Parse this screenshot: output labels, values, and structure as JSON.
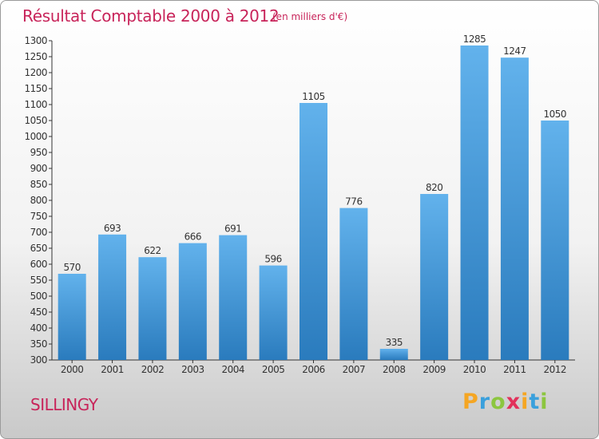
{
  "header": {
    "title": "Résultat Comptable 2000 à 2012",
    "unit_note": "(en milliers d'€)"
  },
  "footer": {
    "commune": "SILLINGY",
    "logo": "Proxiti"
  },
  "colors": {
    "accent": "#c8245a",
    "bar_top": "#62b2ec",
    "bar_bottom": "#2a7bbd"
  },
  "chart_data": {
    "type": "bar",
    "title": "Résultat Comptable 2000 à 2012",
    "subtitle": "(en milliers d'€)",
    "xlabel": "",
    "ylabel": "",
    "categories": [
      "2000",
      "2001",
      "2002",
      "2003",
      "2004",
      "2005",
      "2006",
      "2007",
      "2008",
      "2009",
      "2010",
      "2011",
      "2012"
    ],
    "values": [
      570,
      693,
      622,
      666,
      691,
      596,
      1105,
      776,
      335,
      820,
      1285,
      1247,
      1050
    ],
    "ylim": [
      300,
      1300
    ],
    "ytick_step": 50,
    "grid": false,
    "legend": "none",
    "data_labels": true
  }
}
